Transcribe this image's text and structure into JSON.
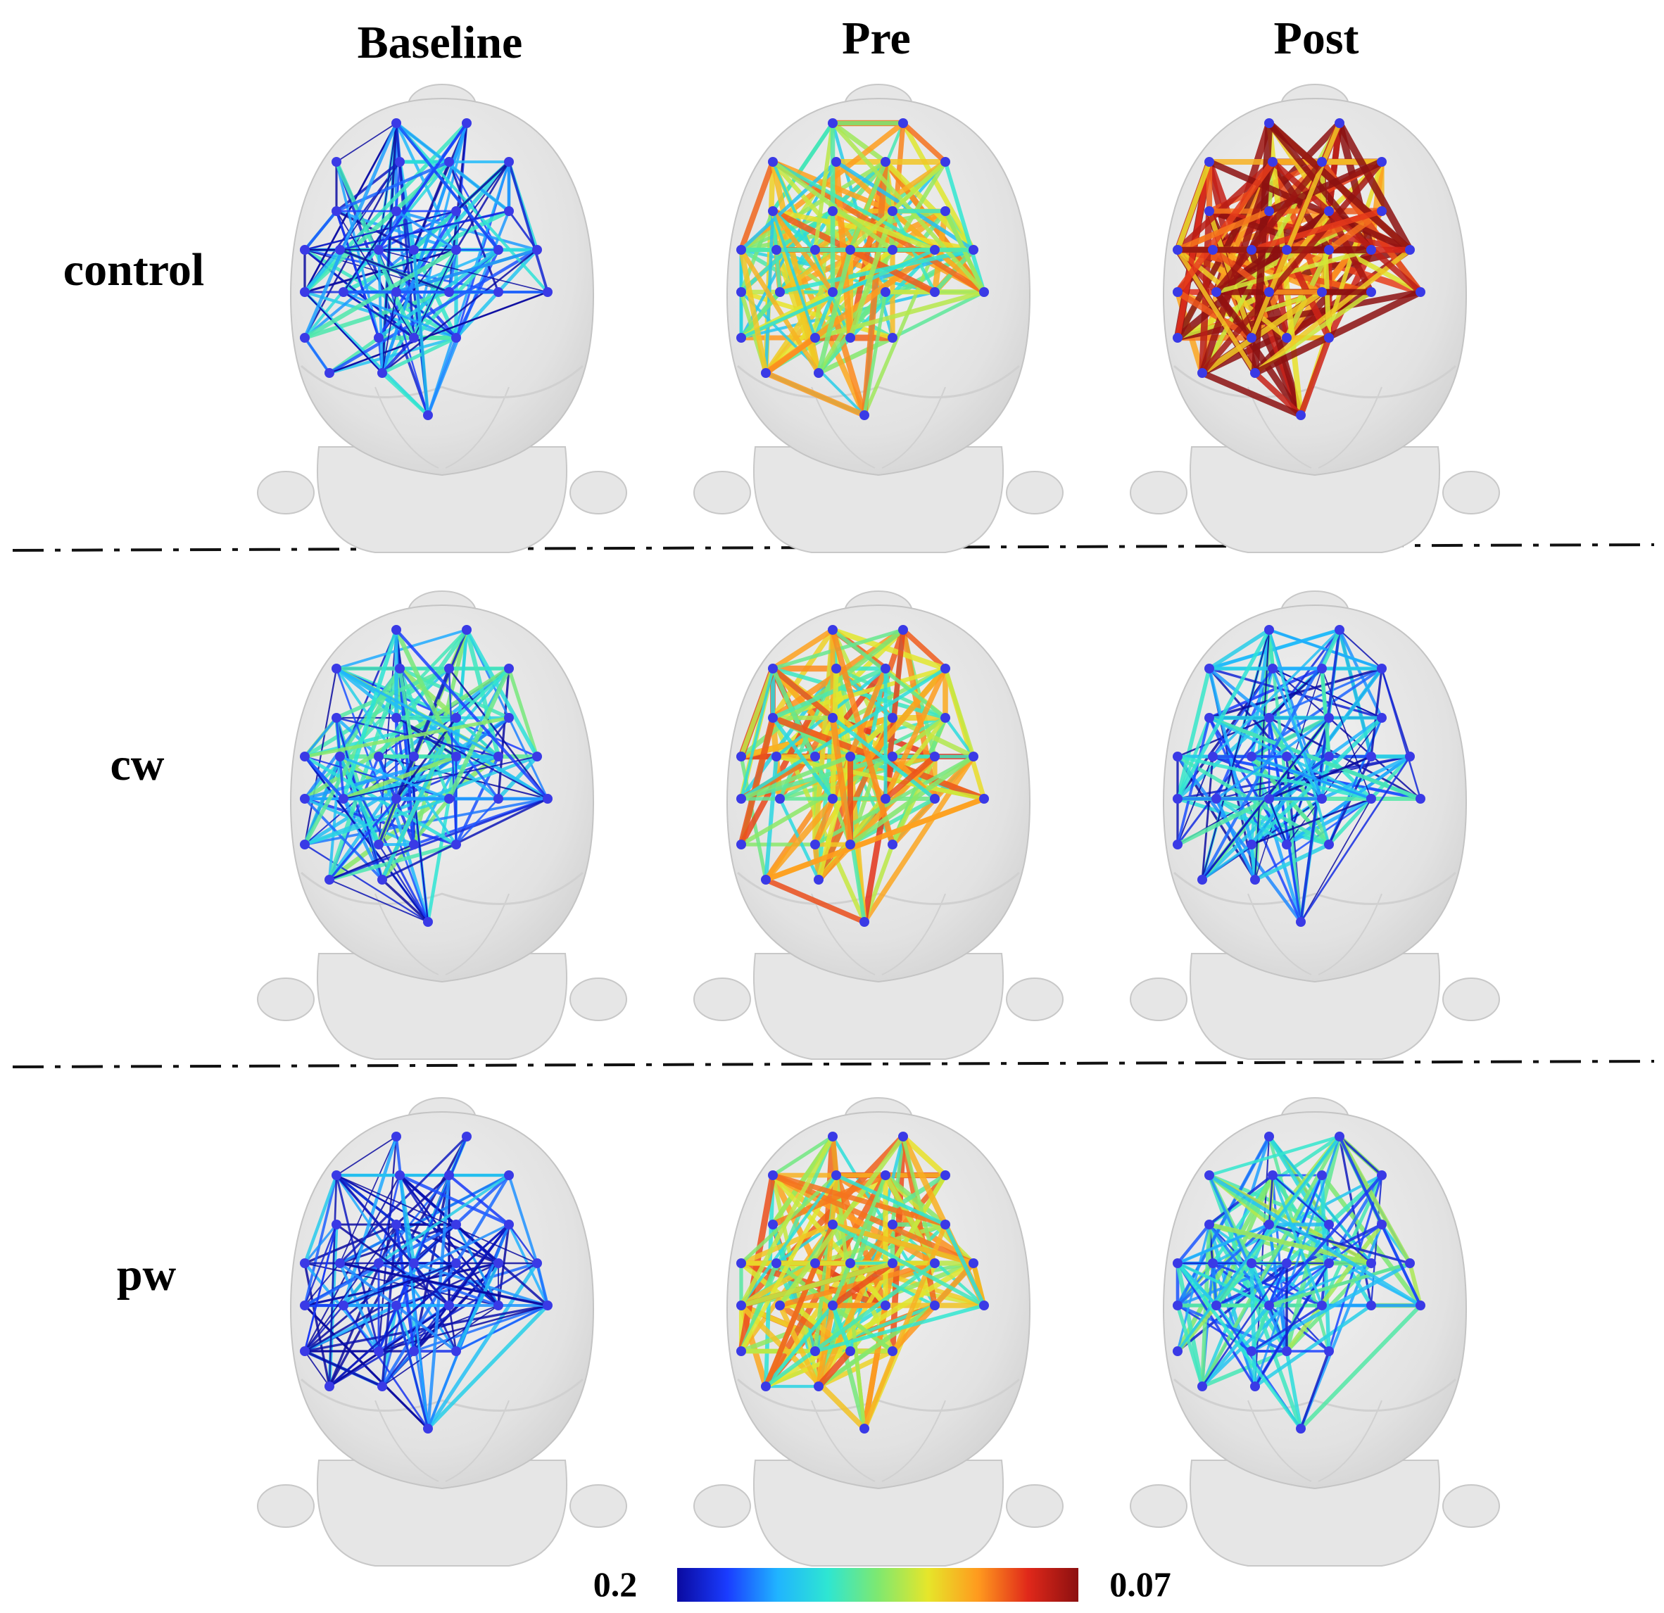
{
  "columns": [
    "Baseline",
    "Pre",
    "Post"
  ],
  "rows": [
    "control",
    "cw",
    "pw"
  ],
  "colorbar": {
    "left_label": "0.2",
    "right_label": "0.07",
    "colors": [
      "#0a0aa0",
      "#1a3cff",
      "#20b4ff",
      "#2ee6d2",
      "#7ee870",
      "#e6e62a",
      "#ff9a1e",
      "#e0281a",
      "#8c1010"
    ]
  },
  "colors": {
    "brain": "#e6e6e6",
    "node": "#3a3ae6"
  },
  "networks": [
    {
      "row": "control",
      "column": "Baseline",
      "intensity": 0.15
    },
    {
      "row": "control",
      "column": "Pre",
      "intensity": 0.55
    },
    {
      "row": "control",
      "column": "Post",
      "intensity": 0.85
    },
    {
      "row": "cw",
      "column": "Baseline",
      "intensity": 0.25
    },
    {
      "row": "cw",
      "column": "Pre",
      "intensity": 0.6
    },
    {
      "row": "cw",
      "column": "Post",
      "intensity": 0.18
    },
    {
      "row": "pw",
      "column": "Baseline",
      "intensity": 0.05
    },
    {
      "row": "pw",
      "column": "Pre",
      "intensity": 0.6
    },
    {
      "row": "pw",
      "column": "Post",
      "intensity": 0.3
    }
  ]
}
